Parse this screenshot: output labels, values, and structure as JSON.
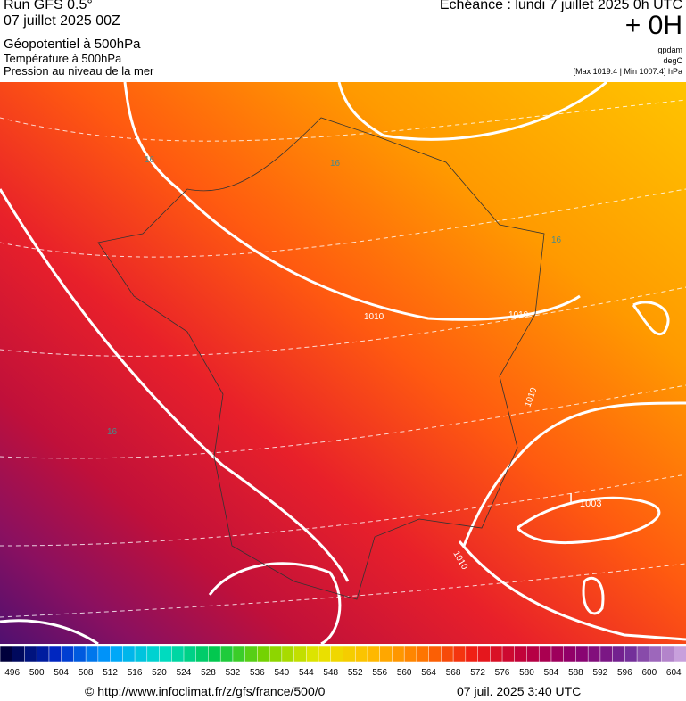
{
  "header": {
    "run": "Run GFS 0.5°",
    "date": "07 juillet 2025 00Z",
    "field": "Géopotentiel à 500hPa",
    "sub1": "Température à 500hPa",
    "sub2": "Pression au niveau de la mer",
    "echeance": "Echéance : lundi 7 juillet 2025 0h UTC",
    "offset": "+ 0H",
    "unit1": "gpdam",
    "unit2": "degC",
    "range": "[Max 1019.4 | Min 1007.4] hPa"
  },
  "map": {
    "labels": [
      "16",
      "16",
      "16",
      "16",
      "1010",
      "1010",
      "1010",
      "1010",
      "L",
      "1003"
    ]
  },
  "legend": {
    "ticks": [
      496,
      500,
      504,
      508,
      512,
      516,
      520,
      524,
      528,
      532,
      536,
      540,
      544,
      548,
      552,
      556,
      560,
      564,
      568,
      572,
      576,
      580,
      584,
      588,
      592,
      596,
      600,
      604
    ]
  },
  "footer": {
    "url": "© http://www.infoclimat.fr/z/gfs/france/500/0",
    "time": "07 juil. 2025  3:40 UTC"
  }
}
